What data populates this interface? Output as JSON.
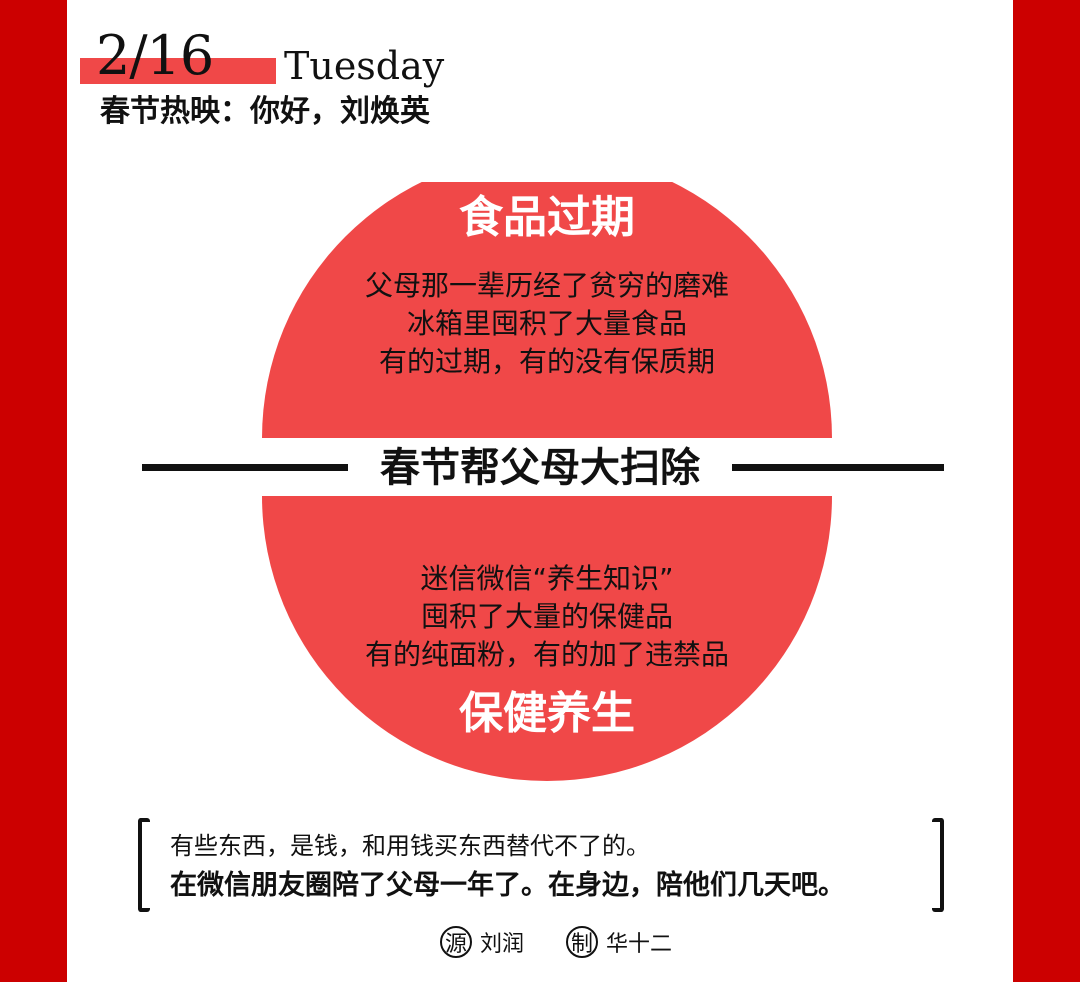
{
  "header": {
    "date": "2/16",
    "weekday": "Tuesday",
    "subtitle": "春节热映：你好，刘焕英"
  },
  "colors": {
    "frame": "#cc0000",
    "circle": "#f04848",
    "date_bar": "#f04848"
  },
  "top_section": {
    "title": "食品过期",
    "lines": [
      "父母那一辈历经了贫穷的磨难",
      "冰箱里囤积了大量食品",
      "有的过期，有的没有保质期"
    ]
  },
  "center_banner": "春节帮父母大扫除",
  "bottom_section": {
    "lines": [
      "迷信微信“养生知识”",
      "囤积了大量的保健品",
      "有的纯面粉，有的加了违禁品"
    ],
    "title": "保健养生"
  },
  "quote": {
    "line1": "有些东西，是钱，和用钱买东西替代不了的。",
    "line2": "在微信朋友圈陪了父母一年了。在身边，陪他们几天吧。"
  },
  "credits": {
    "source_badge": "源",
    "source_name": "刘润",
    "maker_badge": "制",
    "maker_name": "华十二"
  }
}
